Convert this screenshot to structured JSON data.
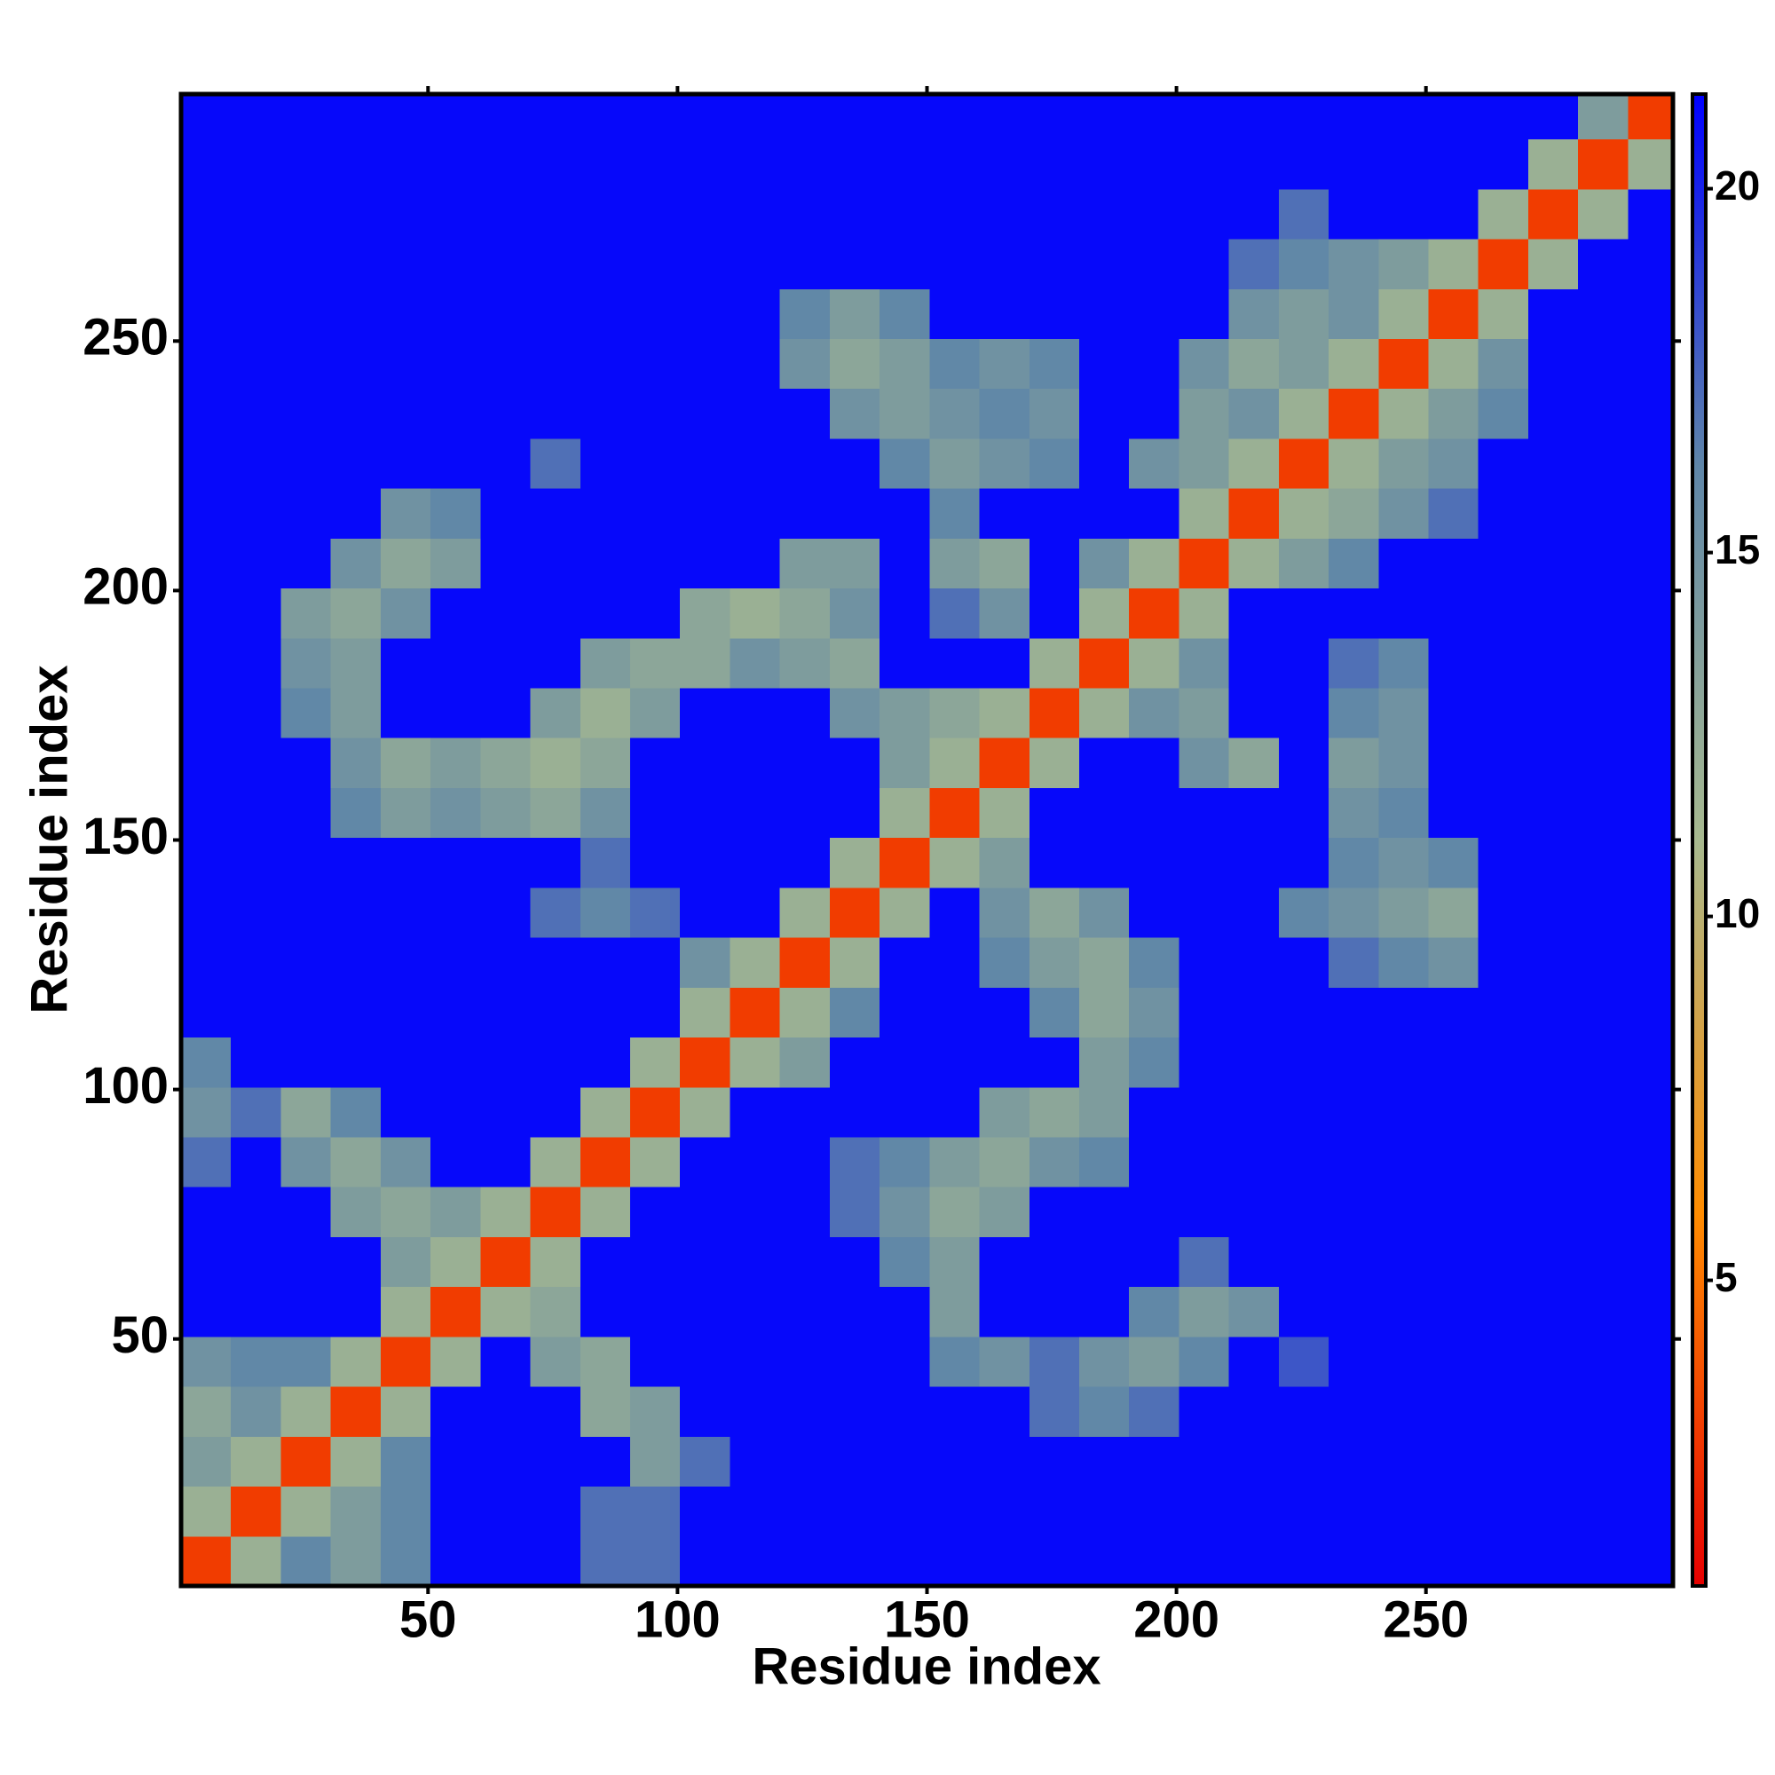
{
  "chart_data": {
    "type": "heatmap",
    "x_label": "Residue index",
    "y_label": "Residue index",
    "xlim": [
      0.5,
      299.5
    ],
    "ylim": [
      0.5,
      299.5
    ],
    "xticks": [
      50,
      100,
      150,
      200,
      250
    ],
    "yticks": [
      50,
      100,
      150,
      200,
      250
    ],
    "xbins": [
      0.5,
      10.5,
      20.5,
      30.5,
      40.5,
      50.5,
      60.5,
      70.5,
      80.5,
      90.5,
      100.5,
      110.5,
      120.5,
      130.5,
      140.5,
      150.5,
      160.5,
      170.5,
      180.5,
      190.5,
      200.5,
      210.5,
      220.5,
      230.5,
      240.5,
      250.5,
      260.5,
      270.5,
      280.5,
      290.5,
      299.5
    ],
    "ybins": [
      0.5,
      10.5,
      20.5,
      30.5,
      40.5,
      50.5,
      60.5,
      70.5,
      80.5,
      90.5,
      100.5,
      110.5,
      120.5,
      130.5,
      140.5,
      150.5,
      160.5,
      170.5,
      180.5,
      190.5,
      200.5,
      210.5,
      220.5,
      230.5,
      240.5,
      250.5,
      260.5,
      270.5,
      280.5,
      290.5,
      299.5
    ],
    "zlim": [
      0.8,
      21.3
    ],
    "zticks": [
      5,
      10,
      15,
      20
    ],
    "colors": [
      "#e60000",
      "#ff8c00",
      "#a7b98f",
      "#5f86a8",
      "#0000ff"
    ],
    "z": [
      [
        3,
        12,
        16,
        14,
        16,
        21,
        21,
        21,
        17,
        17,
        21,
        21,
        21,
        21,
        21,
        21,
        21,
        21,
        21,
        21,
        21,
        21,
        21,
        21,
        21,
        21,
        21,
        21,
        21,
        21
      ],
      [
        12,
        3,
        12,
        14,
        16,
        21,
        21,
        21,
        17,
        17,
        21,
        21,
        21,
        21,
        21,
        21,
        21,
        21,
        21,
        21,
        21,
        21,
        21,
        21,
        21,
        21,
        21,
        21,
        21,
        21
      ],
      [
        14,
        12,
        3,
        12,
        16,
        21,
        21,
        21,
        21,
        14,
        17,
        21,
        21,
        21,
        21,
        21,
        21,
        21,
        21,
        21,
        21,
        21,
        21,
        21,
        21,
        21,
        21,
        21,
        21,
        21
      ],
      [
        13,
        15,
        12,
        3,
        12,
        21,
        21,
        21,
        13,
        14,
        21,
        21,
        21,
        21,
        21,
        21,
        21,
        17,
        16,
        17,
        21,
        21,
        21,
        21,
        21,
        21,
        21,
        21,
        21,
        21
      ],
      [
        15,
        16,
        16,
        12,
        3,
        12,
        21,
        14,
        13,
        21,
        21,
        21,
        21,
        21,
        21,
        16,
        15,
        17,
        15,
        14,
        16,
        21,
        18,
        21,
        21,
        21,
        21,
        21,
        21,
        21
      ],
      [
        21,
        21,
        21,
        21,
        12,
        3,
        12,
        13,
        21,
        21,
        21,
        21,
        21,
        21,
        21,
        14,
        21,
        21,
        21,
        16,
        14,
        15,
        21,
        21,
        21,
        21,
        21,
        21,
        21,
        21
      ],
      [
        21,
        21,
        21,
        21,
        14,
        12,
        3,
        12,
        21,
        21,
        21,
        21,
        21,
        21,
        16,
        14,
        21,
        21,
        21,
        21,
        17,
        21,
        21,
        21,
        21,
        21,
        21,
        21,
        21,
        21
      ],
      [
        21,
        21,
        21,
        14,
        13,
        14,
        12,
        3,
        12,
        21,
        21,
        21,
        21,
        17,
        15,
        13,
        14,
        21,
        21,
        21,
        21,
        21,
        21,
        21,
        21,
        21,
        21,
        21,
        21,
        21
      ],
      [
        17,
        21,
        15,
        13,
        15,
        21,
        21,
        12,
        3,
        12,
        21,
        21,
        21,
        17,
        16,
        14,
        13,
        15,
        16,
        21,
        21,
        21,
        21,
        21,
        21,
        21,
        21,
        21,
        21,
        21
      ],
      [
        15,
        17,
        13,
        16,
        21,
        21,
        21,
        21,
        12,
        3,
        12,
        21,
        21,
        21,
        21,
        21,
        14,
        13,
        14,
        21,
        21,
        21,
        21,
        21,
        21,
        21,
        21,
        21,
        21,
        21
      ],
      [
        16,
        21,
        21,
        21,
        21,
        21,
        21,
        21,
        21,
        12,
        3,
        12,
        14,
        21,
        21,
        21,
        21,
        21,
        14,
        16,
        21,
        21,
        21,
        21,
        21,
        21,
        21,
        21,
        21,
        21
      ],
      [
        21,
        21,
        21,
        21,
        21,
        21,
        21,
        21,
        21,
        21,
        12,
        3,
        12,
        16,
        21,
        21,
        21,
        16,
        13,
        15,
        21,
        21,
        21,
        21,
        21,
        21,
        21,
        21,
        21,
        21
      ],
      [
        21,
        21,
        21,
        21,
        21,
        21,
        21,
        21,
        21,
        21,
        15,
        12,
        3,
        12,
        21,
        21,
        16,
        14,
        13,
        16,
        21,
        21,
        21,
        17,
        16,
        15,
        21,
        21,
        21,
        21
      ],
      [
        21,
        21,
        21,
        21,
        21,
        21,
        21,
        17,
        16,
        17,
        21,
        21,
        12,
        3,
        12,
        21,
        15,
        13,
        15,
        21,
        21,
        21,
        16,
        15,
        14,
        13,
        21,
        21,
        21,
        21
      ],
      [
        21,
        21,
        21,
        21,
        21,
        21,
        21,
        21,
        17,
        21,
        21,
        21,
        21,
        12,
        3,
        12,
        14,
        21,
        21,
        21,
        21,
        21,
        21,
        16,
        15,
        16,
        21,
        21,
        21,
        21
      ],
      [
        21,
        21,
        21,
        16,
        14,
        15,
        14,
        13,
        15,
        21,
        21,
        21,
        21,
        21,
        12,
        3,
        12,
        21,
        21,
        21,
        21,
        21,
        21,
        15,
        16,
        21,
        21,
        21,
        21,
        21
      ],
      [
        21,
        21,
        21,
        15,
        13,
        14,
        13,
        12,
        13,
        21,
        21,
        21,
        21,
        21,
        14,
        12,
        3,
        12,
        21,
        21,
        15,
        13,
        21,
        14,
        15,
        21,
        21,
        21,
        21,
        21
      ],
      [
        21,
        21,
        16,
        14,
        21,
        21,
        21,
        14,
        12,
        14,
        21,
        21,
        21,
        15,
        14,
        13,
        12,
        3,
        12,
        15,
        14,
        21,
        21,
        16,
        15,
        21,
        21,
        21,
        21,
        21
      ],
      [
        21,
        21,
        15,
        14,
        21,
        21,
        21,
        21,
        14,
        13,
        13,
        15,
        14,
        13,
        21,
        21,
        21,
        12,
        3,
        12,
        15,
        21,
        21,
        17,
        16,
        21,
        21,
        21,
        21,
        21
      ],
      [
        21,
        21,
        14,
        13,
        15,
        21,
        21,
        21,
        21,
        21,
        13,
        12,
        13,
        15,
        21,
        17,
        15,
        21,
        12,
        3,
        12,
        21,
        21,
        21,
        21,
        21,
        21,
        21,
        21,
        21
      ],
      [
        21,
        21,
        21,
        15,
        13,
        14,
        21,
        21,
        21,
        21,
        21,
        21,
        14,
        14,
        21,
        14,
        13,
        21,
        15,
        12,
        3,
        12,
        14,
        16,
        21,
        21,
        21,
        21,
        21,
        21
      ],
      [
        21,
        21,
        21,
        21,
        15,
        16,
        21,
        21,
        21,
        21,
        21,
        21,
        21,
        21,
        21,
        16,
        21,
        21,
        21,
        21,
        12,
        3,
        12,
        13,
        15,
        17,
        21,
        21,
        21,
        21
      ],
      [
        21,
        21,
        21,
        21,
        21,
        21,
        21,
        17,
        21,
        21,
        21,
        21,
        21,
        21,
        16,
        14,
        15,
        16,
        21,
        15,
        14,
        12,
        3,
        12,
        14,
        15,
        21,
        21,
        21,
        21
      ],
      [
        21,
        21,
        21,
        21,
        21,
        21,
        21,
        21,
        21,
        21,
        21,
        21,
        21,
        15,
        14,
        15,
        16,
        15,
        21,
        21,
        14,
        15,
        12,
        3,
        12,
        14,
        16,
        21,
        21,
        21
      ],
      [
        21,
        21,
        21,
        21,
        21,
        21,
        21,
        21,
        21,
        21,
        21,
        21,
        15,
        13,
        14,
        16,
        15,
        16,
        21,
        21,
        15,
        13,
        14,
        12,
        3,
        12,
        15,
        21,
        21,
        21
      ],
      [
        21,
        21,
        21,
        21,
        21,
        21,
        21,
        21,
        21,
        21,
        21,
        21,
        16,
        14,
        16,
        21,
        21,
        21,
        21,
        21,
        21,
        15,
        14,
        15,
        12,
        3,
        12,
        21,
        21,
        21
      ],
      [
        21,
        21,
        21,
        21,
        21,
        21,
        21,
        21,
        21,
        21,
        21,
        21,
        21,
        21,
        21,
        21,
        21,
        21,
        21,
        21,
        21,
        17,
        16,
        15,
        14,
        12,
        3,
        12,
        21,
        21
      ],
      [
        21,
        21,
        21,
        21,
        21,
        21,
        21,
        21,
        21,
        21,
        21,
        21,
        21,
        21,
        21,
        21,
        21,
        21,
        21,
        21,
        21,
        21,
        17,
        21,
        21,
        21,
        12,
        3,
        12,
        21
      ],
      [
        21,
        21,
        21,
        21,
        21,
        21,
        21,
        21,
        21,
        21,
        21,
        21,
        21,
        21,
        21,
        21,
        21,
        21,
        21,
        21,
        21,
        21,
        21,
        21,
        21,
        21,
        21,
        12,
        3,
        12
      ],
      [
        21,
        21,
        21,
        21,
        21,
        21,
        21,
        21,
        21,
        21,
        21,
        21,
        21,
        21,
        21,
        21,
        21,
        21,
        21,
        21,
        21,
        21,
        21,
        21,
        21,
        21,
        21,
        21,
        14,
        3
      ]
    ]
  }
}
